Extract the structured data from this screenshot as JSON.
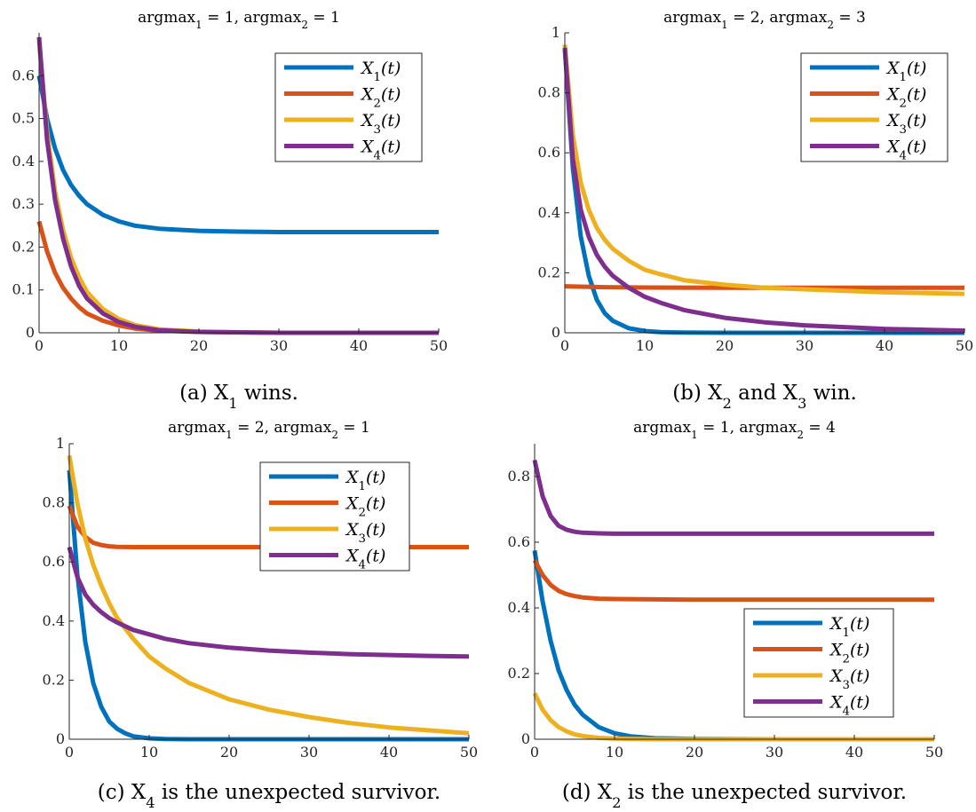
{
  "colors": {
    "X1": "#0072BD",
    "X2": "#D95319",
    "X3": "#EDB120",
    "X4": "#7E2F8E"
  },
  "chart_data": [
    {
      "type": "line",
      "title": "argmax₁ = 1, argmax₂ = 1",
      "caption": "(a) X₁ wins.",
      "xlim": [
        0,
        50
      ],
      "ylim": [
        0,
        0.7
      ],
      "xticks": [
        0,
        10,
        20,
        30,
        40,
        50
      ],
      "yticks": [
        0,
        0.1,
        0.2,
        0.3,
        0.4,
        0.5,
        0.6
      ],
      "legend_position": "top-right",
      "series": [
        {
          "name": "X₁(t)",
          "color_key": "X1",
          "x": [
            0,
            1,
            2,
            3,
            4,
            5,
            6,
            8,
            10,
            12,
            15,
            20,
            25,
            30,
            40,
            50
          ],
          "y": [
            0.6,
            0.5,
            0.43,
            0.38,
            0.345,
            0.32,
            0.3,
            0.275,
            0.26,
            0.25,
            0.243,
            0.238,
            0.236,
            0.235,
            0.235,
            0.235
          ]
        },
        {
          "name": "X₂(t)",
          "color_key": "X2",
          "x": [
            0,
            1,
            2,
            3,
            4,
            5,
            6,
            8,
            10,
            12,
            15,
            20,
            25,
            30,
            40,
            50
          ],
          "y": [
            0.26,
            0.19,
            0.14,
            0.105,
            0.08,
            0.06,
            0.045,
            0.028,
            0.017,
            0.01,
            0.005,
            0.002,
            0.001,
            0,
            0,
            0
          ]
        },
        {
          "name": "X₃(t)",
          "color_key": "X3",
          "x": [
            0,
            1,
            2,
            3,
            4,
            5,
            6,
            8,
            10,
            12,
            15,
            20,
            25,
            30,
            40,
            50
          ],
          "y": [
            0.68,
            0.47,
            0.33,
            0.24,
            0.175,
            0.13,
            0.095,
            0.055,
            0.032,
            0.018,
            0.008,
            0.003,
            0.001,
            0,
            0,
            0
          ]
        },
        {
          "name": "X₄(t)",
          "color_key": "X4",
          "x": [
            0,
            1,
            2,
            3,
            4,
            5,
            6,
            8,
            10,
            12,
            15,
            20,
            25,
            30,
            40,
            50
          ],
          "y": [
            0.69,
            0.45,
            0.31,
            0.22,
            0.155,
            0.11,
            0.08,
            0.045,
            0.025,
            0.014,
            0.006,
            0.002,
            0.001,
            0,
            0,
            0
          ]
        }
      ]
    },
    {
      "type": "line",
      "title": "argmax₁ = 2, argmax₂ = 3",
      "caption": "(b) X₂ and X₃ win.",
      "xlim": [
        0,
        50
      ],
      "ylim": [
        0,
        1
      ],
      "xticks": [
        0,
        10,
        20,
        30,
        40,
        50
      ],
      "yticks": [
        0,
        0.2,
        0.4,
        0.6,
        0.8,
        1
      ],
      "legend_position": "top-right",
      "series": [
        {
          "name": "X₁(t)",
          "color_key": "X1",
          "x": [
            0,
            1,
            2,
            3,
            4,
            5,
            6,
            8,
            10,
            12,
            15,
            20,
            30,
            40,
            50
          ],
          "y": [
            0.95,
            0.55,
            0.32,
            0.19,
            0.11,
            0.065,
            0.04,
            0.015,
            0.006,
            0.002,
            0.001,
            0,
            0,
            0,
            0
          ]
        },
        {
          "name": "X₂(t)",
          "color_key": "X2",
          "x": [
            0,
            5,
            10,
            20,
            30,
            40,
            50
          ],
          "y": [
            0.155,
            0.152,
            0.151,
            0.15,
            0.15,
            0.15,
            0.15
          ]
        },
        {
          "name": "X₃(t)",
          "color_key": "X3",
          "x": [
            0,
            1,
            2,
            3,
            4,
            5,
            6,
            8,
            10,
            12,
            15,
            20,
            25,
            30,
            40,
            50
          ],
          "y": [
            0.96,
            0.66,
            0.5,
            0.41,
            0.35,
            0.31,
            0.28,
            0.24,
            0.21,
            0.195,
            0.175,
            0.16,
            0.15,
            0.145,
            0.135,
            0.13
          ]
        },
        {
          "name": "X₄(t)",
          "color_key": "X4",
          "x": [
            0,
            1,
            2,
            3,
            4,
            5,
            6,
            8,
            10,
            12,
            15,
            20,
            25,
            30,
            40,
            50
          ],
          "y": [
            0.95,
            0.58,
            0.41,
            0.32,
            0.26,
            0.22,
            0.19,
            0.15,
            0.12,
            0.1,
            0.075,
            0.05,
            0.035,
            0.025,
            0.013,
            0.007
          ]
        }
      ]
    },
    {
      "type": "line",
      "title": "argmax₁ = 2, argmax₂ = 1",
      "caption": "(c) X₄ is the unexpected survivor.",
      "xlim": [
        0,
        50
      ],
      "ylim": [
        0,
        1
      ],
      "xticks": [
        0,
        10,
        20,
        30,
        40,
        50
      ],
      "yticks": [
        0,
        0.2,
        0.4,
        0.6,
        0.8,
        1
      ],
      "legend_position": "top-right",
      "series": [
        {
          "name": "X₁(t)",
          "color_key": "X1",
          "x": [
            0,
            1,
            2,
            3,
            4,
            5,
            6,
            7,
            8,
            10,
            12,
            15,
            20,
            30,
            40,
            50
          ],
          "y": [
            0.91,
            0.56,
            0.33,
            0.19,
            0.11,
            0.06,
            0.035,
            0.02,
            0.01,
            0.003,
            0.001,
            0,
            0,
            0,
            0,
            0
          ]
        },
        {
          "name": "X₂(t)",
          "color_key": "X2",
          "x": [
            0,
            1,
            2,
            3,
            4,
            5,
            6,
            8,
            10,
            15,
            20,
            30,
            40,
            50
          ],
          "y": [
            0.79,
            0.72,
            0.685,
            0.665,
            0.657,
            0.653,
            0.651,
            0.65,
            0.65,
            0.65,
            0.65,
            0.65,
            0.65,
            0.65
          ]
        },
        {
          "name": "X₃(t)",
          "color_key": "X3",
          "x": [
            0,
            1,
            2,
            3,
            4,
            5,
            6,
            8,
            10,
            12,
            15,
            20,
            25,
            30,
            35,
            40,
            45,
            50
          ],
          "y": [
            0.96,
            0.8,
            0.68,
            0.59,
            0.52,
            0.46,
            0.41,
            0.34,
            0.28,
            0.24,
            0.19,
            0.135,
            0.1,
            0.075,
            0.055,
            0.04,
            0.03,
            0.02
          ]
        },
        {
          "name": "X₄(t)",
          "color_key": "X4",
          "x": [
            0,
            1,
            2,
            3,
            4,
            5,
            6,
            8,
            10,
            12,
            15,
            20,
            25,
            30,
            35,
            40,
            45,
            50
          ],
          "y": [
            0.65,
            0.55,
            0.49,
            0.455,
            0.43,
            0.41,
            0.395,
            0.37,
            0.355,
            0.34,
            0.325,
            0.31,
            0.3,
            0.293,
            0.288,
            0.285,
            0.282,
            0.28
          ]
        }
      ]
    },
    {
      "type": "line",
      "title": "argmax₁ = 1, argmax₂ = 4",
      "caption": "(d) X₂ is the unexpected survivor.",
      "xlim": [
        0,
        50
      ],
      "ylim": [
        0,
        0.9
      ],
      "xticks": [
        0,
        10,
        20,
        30,
        40,
        50
      ],
      "yticks": [
        0,
        0.2,
        0.4,
        0.6,
        0.8
      ],
      "legend_position": "lower-right",
      "series": [
        {
          "name": "X₁(t)",
          "color_key": "X1",
          "x": [
            0,
            1,
            2,
            3,
            4,
            5,
            6,
            8,
            10,
            12,
            15,
            20,
            30,
            40,
            50
          ],
          "y": [
            0.575,
            0.42,
            0.3,
            0.21,
            0.15,
            0.105,
            0.075,
            0.037,
            0.018,
            0.009,
            0.003,
            0.001,
            0,
            0,
            0
          ]
        },
        {
          "name": "X₂(t)",
          "color_key": "X2",
          "x": [
            0,
            1,
            2,
            3,
            4,
            5,
            6,
            8,
            10,
            15,
            20,
            30,
            40,
            50
          ],
          "y": [
            0.545,
            0.5,
            0.47,
            0.452,
            0.442,
            0.436,
            0.432,
            0.428,
            0.427,
            0.426,
            0.425,
            0.425,
            0.425,
            0.425
          ]
        },
        {
          "name": "X₃(t)",
          "color_key": "X3",
          "x": [
            0,
            1,
            2,
            3,
            4,
            5,
            6,
            8,
            10,
            12,
            15,
            20,
            30,
            40,
            50
          ],
          "y": [
            0.14,
            0.09,
            0.058,
            0.037,
            0.024,
            0.015,
            0.01,
            0.004,
            0.002,
            0.001,
            0,
            0,
            0,
            0,
            0
          ]
        },
        {
          "name": "X₄(t)",
          "color_key": "X4",
          "x": [
            0,
            1,
            2,
            3,
            4,
            5,
            6,
            8,
            10,
            15,
            20,
            30,
            40,
            50
          ],
          "y": [
            0.85,
            0.74,
            0.68,
            0.65,
            0.638,
            0.632,
            0.629,
            0.627,
            0.626,
            0.626,
            0.626,
            0.626,
            0.626,
            0.626
          ]
        }
      ]
    }
  ]
}
